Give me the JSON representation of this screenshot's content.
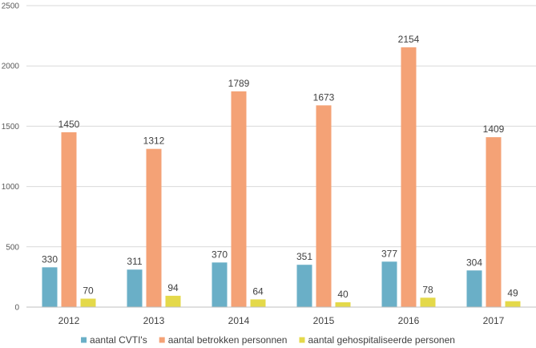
{
  "chart_data": {
    "type": "bar",
    "categories": [
      "2012",
      "2013",
      "2014",
      "2015",
      "2016",
      "2017"
    ],
    "series": [
      {
        "name": "aantal CVTI's",
        "values": [
          330,
          311,
          370,
          351,
          377,
          304
        ],
        "color": "#6AAFC7"
      },
      {
        "name": "aantal betrokken personnen",
        "values": [
          1450,
          1312,
          1789,
          1673,
          2154,
          1409
        ],
        "color": "#F4A276"
      },
      {
        "name": "aantal gehospitaliseerde personen",
        "values": [
          70,
          94,
          64,
          40,
          78,
          49
        ],
        "color": "#E4D94A"
      }
    ],
    "ylim": [
      0,
      2500
    ],
    "yticks": [
      "0",
      "500",
      "1000",
      "1500",
      "2000",
      "2500"
    ],
    "title": "",
    "xlabel": "",
    "ylabel": "",
    "grid": true,
    "legend_position": "bottom"
  }
}
